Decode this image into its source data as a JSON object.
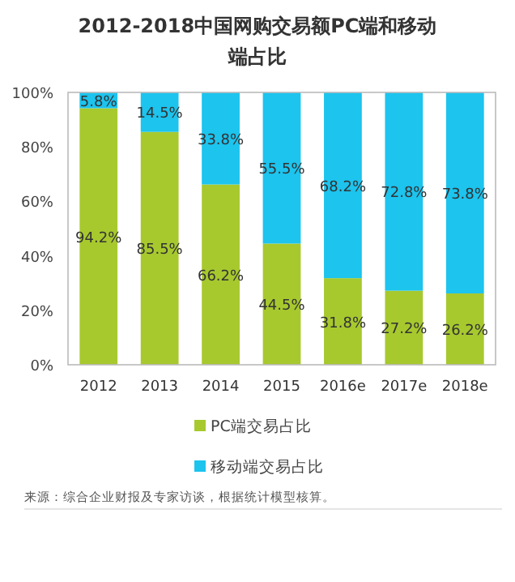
{
  "chart_data": {
    "type": "bar",
    "title": "2012-2018中国网购交易额PC端和移动端占比",
    "categories": [
      "2012",
      "2013",
      "2014",
      "2015",
      "2016e",
      "2017e",
      "2018e"
    ],
    "stacked": true,
    "legend": "bottom",
    "ylim": [
      0,
      100
    ],
    "yticks": [
      {
        "value": 0,
        "label": "0%"
      },
      {
        "value": 20,
        "label": "20%"
      },
      {
        "value": 40,
        "label": "40%"
      },
      {
        "value": 60,
        "label": "60%"
      },
      {
        "value": 80,
        "label": "80%"
      },
      {
        "value": 100,
        "label": "100%"
      }
    ],
    "series": [
      {
        "name": "PC端交易占比",
        "color": "#a7c92e",
        "values": [
          94.2,
          85.5,
          66.2,
          44.5,
          31.8,
          27.2,
          26.2
        ],
        "value_labels": [
          "94.2%",
          "85.5%",
          "66.2%",
          "44.5%",
          "31.8%",
          "27.2%",
          "26.2%"
        ]
      },
      {
        "name": "移动端交易占比",
        "color": "#1cc4ee",
        "values": [
          5.8,
          14.5,
          33.8,
          55.5,
          68.2,
          72.8,
          73.8
        ],
        "value_labels": [
          "5.8%",
          "14.5%",
          "33.8%",
          "55.5%",
          "68.2%",
          "72.8%",
          "73.8%"
        ]
      }
    ],
    "annotations": [
      "来源：综合企业财报及专家访谈，根据统计模型核算。"
    ]
  }
}
